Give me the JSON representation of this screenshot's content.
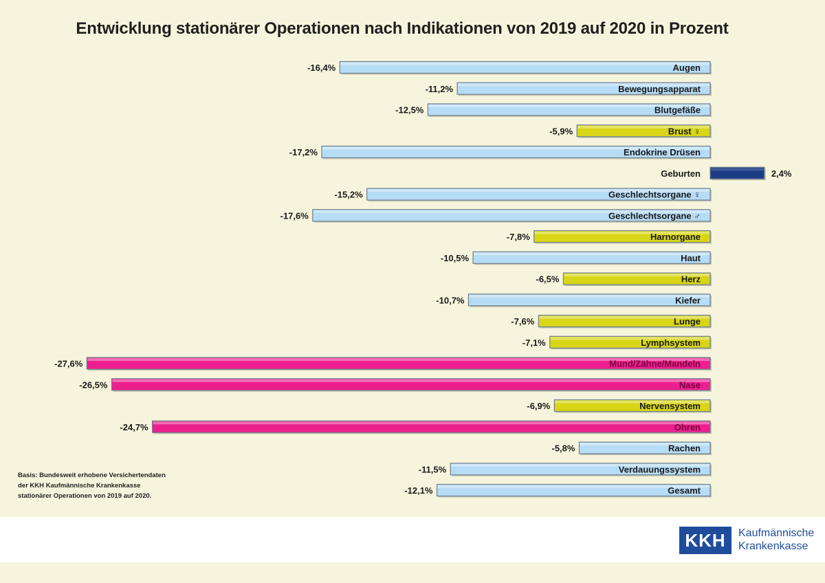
{
  "chart_data": {
    "type": "bar",
    "orientation": "horizontal",
    "title": "Entwicklung stationärer Operationen nach Indikationen von 2019 auf 2020 in Prozent",
    "unit": "%",
    "categories": [
      "Augen",
      "Bewegungsapparat",
      "Blutgefäße",
      "Brust ♀",
      "Endokrine Drüsen",
      "Geburten",
      "Geschlechtsorgane ♀",
      "Geschlechtsorgane ♂",
      "Harnorgane",
      "Haut",
      "Herz",
      "Kiefer",
      "Lunge",
      "Lymphsystem",
      "Mund/Zähne/Mandeln",
      "Nase",
      "Nervensystem",
      "Ohren",
      "Rachen",
      "Verdauungssystem",
      "Gesamt"
    ],
    "values": [
      -16.4,
      -11.2,
      -12.5,
      -5.9,
      -17.2,
      2.4,
      -15.2,
      -17.6,
      -7.8,
      -10.5,
      -6.5,
      -10.7,
      -7.6,
      -7.1,
      -27.6,
      -26.5,
      -6.9,
      -24.7,
      -5.8,
      -11.5,
      -12.1
    ],
    "value_labels": [
      "-16,4%",
      "-11,2%",
      "-12,5%",
      "-5,9%",
      "-17,2%",
      "2,4%",
      "-15,2%",
      "-17,6%",
      "-7,8%",
      "-10,5%",
      "-6,5%",
      "-10,7%",
      "-7,6%",
      "-7,1%",
      "-27,6%",
      "-26,5%",
      "-6,9%",
      "-24,7%",
      "-5,8%",
      "-11,5%",
      "-12,1%"
    ],
    "colors": {
      "light_blue": "#b7dcf5",
      "yellow": "#d8d616",
      "magenta": "#ec1f8e",
      "dark_blue": "#1c3d86",
      "border": "#6f7f8f"
    },
    "color_groups": [
      "light_blue",
      "light_blue",
      "light_blue",
      "yellow",
      "light_blue",
      "dark_blue",
      "light_blue",
      "light_blue",
      "yellow",
      "light_blue",
      "yellow",
      "light_blue",
      "yellow",
      "yellow",
      "magenta",
      "magenta",
      "yellow",
      "magenta",
      "light_blue",
      "light_blue",
      "light_blue"
    ],
    "xlim": [
      -27.6,
      2.4
    ],
    "grid": false,
    "legend": "none"
  },
  "basis_note": {
    "line1": "Basis: Bundesweit erhobene Versichertendaten",
    "line2": "der KKH Kaufmännische Krankenkasse",
    "line3": "stationärer Operationen von 2019 auf 2020."
  },
  "logo": {
    "mark": "KKH",
    "line1": "Kaufmännische",
    "line2": "Krankenkasse"
  }
}
